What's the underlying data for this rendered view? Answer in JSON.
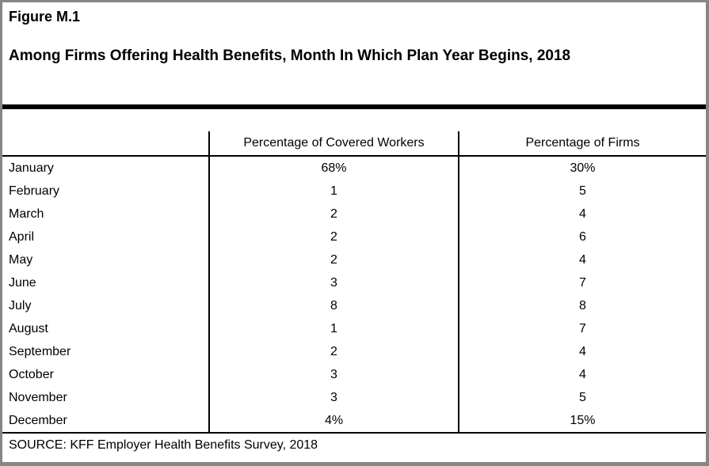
{
  "figure": {
    "label": "Figure M.1",
    "title": "Among Firms Offering Health Benefits, Month In Which Plan Year Begins, 2018",
    "source": "SOURCE: KFF Employer Health Benefits Survey, 2018"
  },
  "table": {
    "columns": {
      "month": "",
      "covered_workers": "Percentage of Covered Workers",
      "firms": "Percentage of Firms"
    },
    "rows": [
      {
        "month": "January",
        "covered_workers": "68%",
        "firms": "30%"
      },
      {
        "month": "February",
        "covered_workers": "1",
        "firms": "5"
      },
      {
        "month": "March",
        "covered_workers": "2",
        "firms": "4"
      },
      {
        "month": "April",
        "covered_workers": "2",
        "firms": "6"
      },
      {
        "month": "May",
        "covered_workers": "2",
        "firms": "4"
      },
      {
        "month": "June",
        "covered_workers": "3",
        "firms": "7"
      },
      {
        "month": "July",
        "covered_workers": "8",
        "firms": "8"
      },
      {
        "month": "August",
        "covered_workers": "1",
        "firms": "7"
      },
      {
        "month": "September",
        "covered_workers": "2",
        "firms": "4"
      },
      {
        "month": "October",
        "covered_workers": "3",
        "firms": "4"
      },
      {
        "month": "November",
        "covered_workers": "3",
        "firms": "5"
      },
      {
        "month": "December",
        "covered_workers": "4%",
        "firms": "15%"
      }
    ]
  },
  "chart_data": {
    "type": "table",
    "title": "Among Firms Offering Health Benefits, Month In Which Plan Year Begins, 2018",
    "categories": [
      "January",
      "February",
      "March",
      "April",
      "May",
      "June",
      "July",
      "August",
      "September",
      "October",
      "November",
      "December"
    ],
    "series": [
      {
        "name": "Percentage of Covered Workers",
        "values": [
          68,
          1,
          2,
          2,
          2,
          3,
          8,
          1,
          2,
          3,
          3,
          4
        ]
      },
      {
        "name": "Percentage of Firms",
        "values": [
          30,
          5,
          4,
          6,
          4,
          7,
          8,
          7,
          4,
          4,
          5,
          15
        ]
      }
    ],
    "units": "percent",
    "source": "KFF Employer Health Benefits Survey, 2018"
  },
  "colors": {
    "frame_border": "#868686",
    "separator_bar": "#000000",
    "table_rule": "#000000",
    "text": "#000000",
    "background": "#ffffff"
  }
}
